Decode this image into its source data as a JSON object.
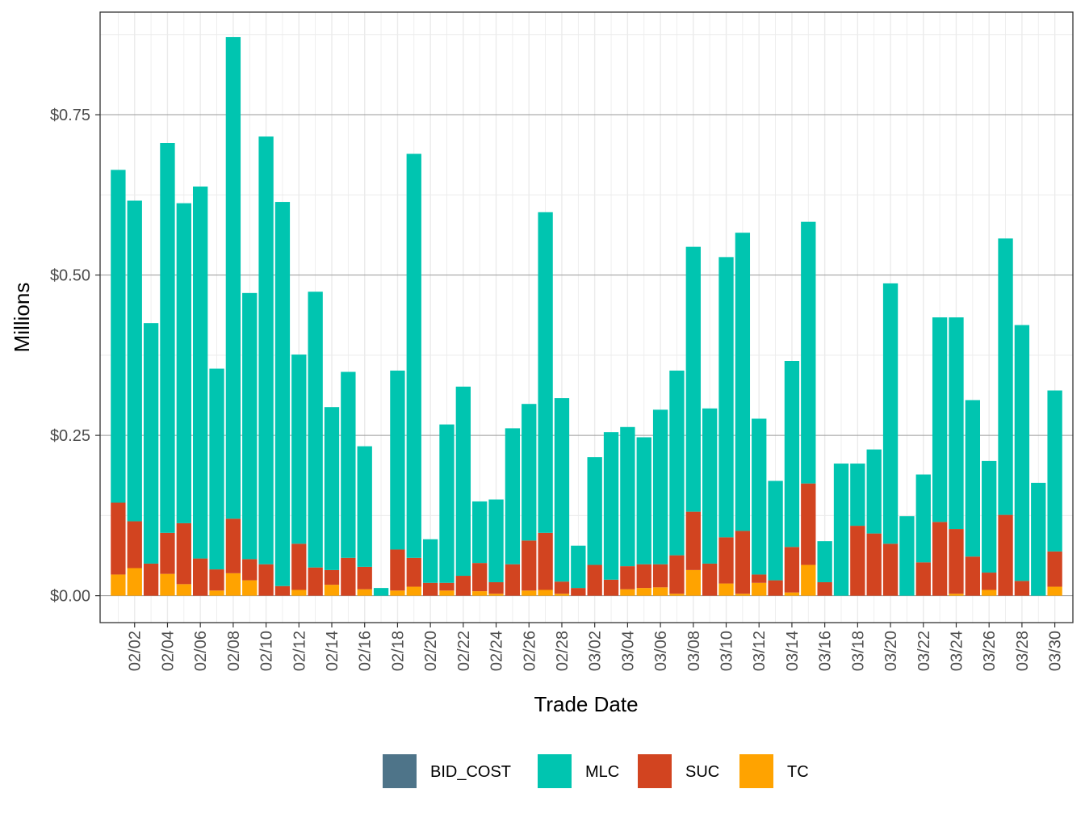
{
  "colors": {
    "BID_COST": "#4E7489",
    "MLC": "#00C5B0",
    "SUC": "#D24420",
    "TC": "#FFA300",
    "grid_major": "#9a9a9a",
    "grid_minor": "#ebebeb",
    "panel_border": "#333333"
  },
  "chart_data": {
    "type": "bar",
    "stacked": true,
    "xlabel": "Trade Date",
    "ylabel": "Millions",
    "ylim": [
      -0.042,
      0.91
    ],
    "y_ticks": [
      0,
      0.25,
      0.5,
      0.75
    ],
    "y_tick_labels": [
      "$0.00",
      "$0.25",
      "$0.50",
      "$0.75"
    ],
    "x_tick_labels": [
      "02/02",
      "02/04",
      "02/06",
      "02/08",
      "02/10",
      "02/12",
      "02/14",
      "02/16",
      "02/18",
      "02/20",
      "02/22",
      "02/24",
      "02/26",
      "02/28",
      "03/02",
      "03/04",
      "03/06",
      "03/08",
      "03/10",
      "03/12",
      "03/14",
      "03/16",
      "03/18",
      "03/20",
      "03/22",
      "03/24",
      "03/26",
      "03/28",
      "03/30"
    ],
    "categories": [
      "02/01",
      "02/02",
      "02/03",
      "02/04",
      "02/05",
      "02/06",
      "02/07",
      "02/08",
      "02/09",
      "02/10",
      "02/11",
      "02/12",
      "02/13",
      "02/14",
      "02/15",
      "02/16",
      "02/17",
      "02/18",
      "02/19",
      "02/20",
      "02/21",
      "02/22",
      "02/23",
      "02/24",
      "02/25",
      "02/26",
      "02/27",
      "02/28",
      "03/01",
      "03/02",
      "03/03",
      "03/04",
      "03/05",
      "03/06",
      "03/07",
      "03/08",
      "03/09",
      "03/10",
      "03/11",
      "03/12",
      "03/13",
      "03/14",
      "03/15",
      "03/16",
      "03/17",
      "03/18",
      "03/19",
      "03/20",
      "03/21",
      "03/22",
      "03/23",
      "03/24",
      "03/25",
      "03/26",
      "03/27",
      "03/28",
      "03/29",
      "03/30"
    ],
    "legend_position": "bottom",
    "legend": [
      "BID_COST",
      "MLC",
      "SUC",
      "TC"
    ],
    "series": [
      {
        "name": "TC",
        "values": [
          0.033,
          0.043,
          0,
          0.034,
          0.018,
          0,
          0.008,
          0.035,
          0.024,
          0,
          0,
          0.009,
          0,
          0.017,
          0,
          0.01,
          0,
          0.008,
          0.014,
          0,
          0.008,
          0,
          0.007,
          0.003,
          0,
          0.008,
          0.009,
          0.003,
          0,
          0,
          0,
          0.01,
          0.012,
          0.013,
          0.003,
          0.04,
          0,
          0.019,
          0.003,
          0.02,
          0,
          0.005,
          0.048,
          0,
          0,
          0,
          0,
          0,
          0,
          0,
          0,
          0.003,
          0,
          0.009,
          0,
          0,
          0,
          0.014
        ]
      },
      {
        "name": "SUC",
        "values": [
          0.112,
          0.073,
          0.05,
          0.064,
          0.095,
          0.058,
          0.033,
          0.085,
          0.033,
          0.049,
          0.015,
          0.072,
          0.044,
          0.023,
          0.059,
          0.035,
          0,
          0.064,
          0.045,
          0.02,
          0.012,
          0.031,
          0.044,
          0.018,
          0.049,
          0.078,
          0.089,
          0.019,
          0.012,
          0.048,
          0.025,
          0.036,
          0.037,
          0.036,
          0.06,
          0.091,
          0.05,
          0.072,
          0.098,
          0.013,
          0.024,
          0.071,
          0.127,
          0.021,
          0,
          0.109,
          0.097,
          0.081,
          0,
          0.052,
          0.115,
          0.101,
          0.061,
          0.027,
          0.126,
          0.023,
          0,
          0.055
        ]
      },
      {
        "name": "MLC",
        "values": [
          0.519,
          0.5,
          0.375,
          0.608,
          0.499,
          0.58,
          0.313,
          0.751,
          0.415,
          0.667,
          0.599,
          0.295,
          0.43,
          0.254,
          0.29,
          0.188,
          0.012,
          0.279,
          0.63,
          0.068,
          0.247,
          0.295,
          0.096,
          0.129,
          0.212,
          0.213,
          0.5,
          0.286,
          0.066,
          0.168,
          0.23,
          0.217,
          0.198,
          0.241,
          0.288,
          0.413,
          0.242,
          0.437,
          0.465,
          0.243,
          0.155,
          0.29,
          0.408,
          0.064,
          0.206,
          0.097,
          0.131,
          0.406,
          0.124,
          0.137,
          0.319,
          0.33,
          0.244,
          0.174,
          0.431,
          0.399,
          0.176,
          0.251
        ]
      }
    ]
  }
}
